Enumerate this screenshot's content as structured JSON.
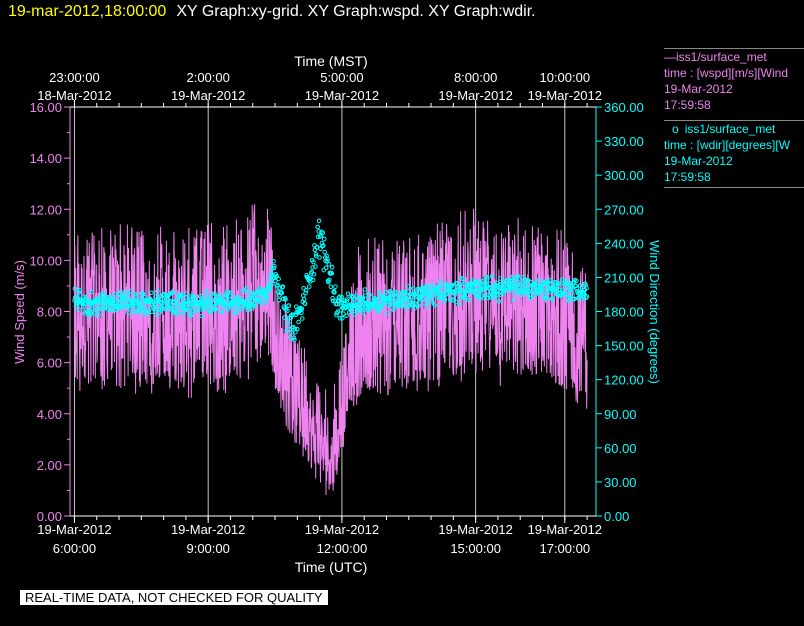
{
  "header": {
    "date_label": "19-mar-2012,18:00:00",
    "graph_titles": "XY Graph:xy-grid.  XY Graph:wspd.  XY Graph:wdir."
  },
  "legend": {
    "wspd": {
      "marker": "—",
      "name": "iss1/surface_met",
      "vars": "time : [wspd][m/s][Wind",
      "date": "19-Mar-2012",
      "time": "17:59:58"
    },
    "wdir": {
      "marker": "o",
      "name": "iss1/surface_met",
      "vars": "time : [wdir][degrees][W",
      "date": "19-Mar-2012",
      "time": "17:59:58"
    }
  },
  "footer": {
    "note": "REAL-TIME DATA, NOT CHECKED FOR QUALITY"
  },
  "colors": {
    "wspd": "#ee82ee",
    "wdir": "#00ffff",
    "grid": "#c8c8c8",
    "background": "#000000"
  },
  "chart_data": {
    "type": "line",
    "title": "",
    "x_bottom": {
      "label": "Time (UTC)",
      "range": [
        5.9,
        17.7
      ],
      "ticks": [
        {
          "at": 6.0,
          "top": "19-Mar-2012",
          "bottom": "6:00:00"
        },
        {
          "at": 9.0,
          "top": "19-Mar-2012",
          "bottom": "9:00:00"
        },
        {
          "at": 12.0,
          "top": "19-Mar-2012",
          "bottom": "12:00:00"
        },
        {
          "at": 15.0,
          "top": "19-Mar-2012",
          "bottom": "15:00:00"
        },
        {
          "at": 17.0,
          "top": "19-Mar-2012",
          "bottom": "17:00:00"
        }
      ]
    },
    "x_top": {
      "label": "Time (MST)",
      "ticks": [
        {
          "at": 6.0,
          "top": "23:00:00",
          "bottom": "18-Mar-2012"
        },
        {
          "at": 9.0,
          "top": "2:00:00",
          "bottom": "19-Mar-2012"
        },
        {
          "at": 12.0,
          "top": "5:00:00",
          "bottom": "19-Mar-2012"
        },
        {
          "at": 15.0,
          "top": "8:00:00",
          "bottom": "19-Mar-2012"
        },
        {
          "at": 17.0,
          "top": "10:00:00",
          "bottom": "19-Mar-2012"
        }
      ]
    },
    "y_left": {
      "label": "Wind Speed (m/s)",
      "range": [
        0,
        16
      ],
      "ticks": [
        "0.00",
        "2.00",
        "4.00",
        "6.00",
        "8.00",
        "10.00",
        "12.00",
        "14.00",
        "16.00"
      ]
    },
    "y_right": {
      "label": "Wind Direction (degrees)",
      "range": [
        0,
        360
      ],
      "ticks": [
        "0.00",
        "30.00",
        "60.00",
        "90.00",
        "120.00",
        "150.00",
        "180.00",
        "210.00",
        "240.00",
        "270.00",
        "300.00",
        "330.00",
        "360.00"
      ]
    },
    "grid": true,
    "series": [
      {
        "name": "iss1/surface_met",
        "variable": "wspd",
        "axis": "left",
        "style": "line",
        "x": [
          6.0,
          6.5,
          7.0,
          7.5,
          8.0,
          8.5,
          9.0,
          9.5,
          10.0,
          10.3,
          10.6,
          10.9,
          11.2,
          11.4,
          11.6,
          11.8,
          12.0,
          12.2,
          12.5,
          13.0,
          13.5,
          14.0,
          14.5,
          15.0,
          15.5,
          16.0,
          16.5,
          17.0,
          17.5
        ],
        "center": [
          8.0,
          7.8,
          8.2,
          7.6,
          7.9,
          7.6,
          7.9,
          7.7,
          8.5,
          9.0,
          6.5,
          5.5,
          4.0,
          3.0,
          2.5,
          2.6,
          4.5,
          6.5,
          7.3,
          7.4,
          7.6,
          7.7,
          8.1,
          8.5,
          8.2,
          8.0,
          8.0,
          7.4,
          7.3
        ],
        "min": [
          4.5,
          4.8,
          5.0,
          4.6,
          5.0,
          4.5,
          4.9,
          4.7,
          5.5,
          6.5,
          4.0,
          3.0,
          2.0,
          1.3,
          0.6,
          0.9,
          2.4,
          4.0,
          4.6,
          4.5,
          4.8,
          4.8,
          5.0,
          5.5,
          5.0,
          5.0,
          5.0,
          4.7,
          4.0
        ],
        "max": [
          11.5,
          11.3,
          11.8,
          11.2,
          11.5,
          11.4,
          11.5,
          11.4,
          12.3,
          12.7,
          9.0,
          8.0,
          6.5,
          5.5,
          5.0,
          4.8,
          7.0,
          9.5,
          11.3,
          10.8,
          11.0,
          11.3,
          11.8,
          12.2,
          11.8,
          11.8,
          11.5,
          11.2,
          10.8
        ]
      },
      {
        "name": "iss1/surface_met",
        "variable": "wdir",
        "axis": "right",
        "style": "scatter",
        "x": [
          6.0,
          6.5,
          7.0,
          7.5,
          8.0,
          8.5,
          9.0,
          9.5,
          10.0,
          10.3,
          10.5,
          10.7,
          10.9,
          11.1,
          11.3,
          11.5,
          11.7,
          11.9,
          12.1,
          12.5,
          13.0,
          13.5,
          14.0,
          14.5,
          15.0,
          15.5,
          16.0,
          16.5,
          17.0,
          17.5
        ],
        "center": [
          190,
          186,
          190,
          186,
          188,
          186,
          187,
          188,
          190,
          198,
          218,
          185,
          165,
          182,
          215,
          245,
          220,
          185,
          184,
          188,
          190,
          192,
          195,
          198,
          200,
          200,
          202,
          200,
          200,
          197
        ],
        "spread": [
          12,
          12,
          12,
          12,
          12,
          12,
          12,
          12,
          12,
          14,
          12,
          18,
          16,
          15,
          18,
          22,
          20,
          15,
          12,
          12,
          12,
          12,
          12,
          12,
          12,
          12,
          12,
          12,
          12,
          12
        ]
      }
    ]
  }
}
